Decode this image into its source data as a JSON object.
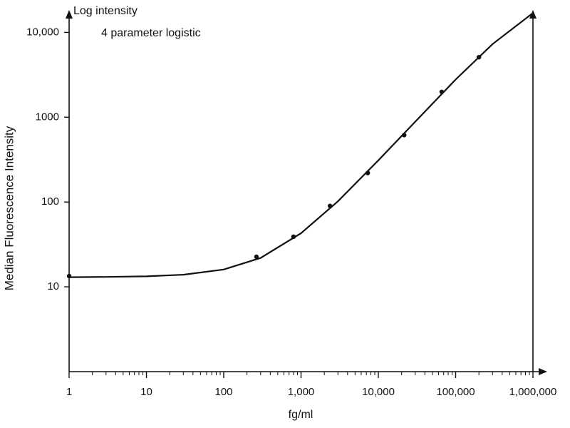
{
  "chart_data": {
    "type": "scatter",
    "annotations": [
      "Log intensity",
      "4 parameter logistic"
    ],
    "x_label": "fg/ml",
    "y_label": "Median Fluorescence Intensity",
    "x_scale": "log",
    "y_scale": "log",
    "xlim": [
      1,
      1000000
    ],
    "ylim": [
      1,
      17000
    ],
    "xticks": [
      1,
      10,
      100,
      {
        "value": 1000,
        "label": "1,000"
      },
      {
        "value": 10000,
        "label": "10,000"
      },
      {
        "value": 100000,
        "label": "100,000"
      },
      {
        "value": 1000000,
        "label": "1,000,000"
      }
    ],
    "yticks": [
      10,
      100,
      1000,
      {
        "value": 10000,
        "label": "10,000"
      }
    ],
    "color": "#111111",
    "points": {
      "x": [
        1,
        265,
        800,
        2370,
        7300,
        21600,
        66000,
        200000
      ],
      "values": [
        13.4,
        22.6,
        39,
        90,
        220,
        615,
        1990,
        5100
      ]
    },
    "curve": {
      "x": [
        1,
        3,
        10,
        30,
        100,
        300,
        1000,
        3000,
        10000,
        30000,
        100000,
        300000,
        1000000
      ],
      "values": [
        13.0,
        13.1,
        13.3,
        13.9,
        16.0,
        21.9,
        42.8,
        102,
        310,
        886,
        2780,
        7280,
        16900
      ]
    }
  }
}
